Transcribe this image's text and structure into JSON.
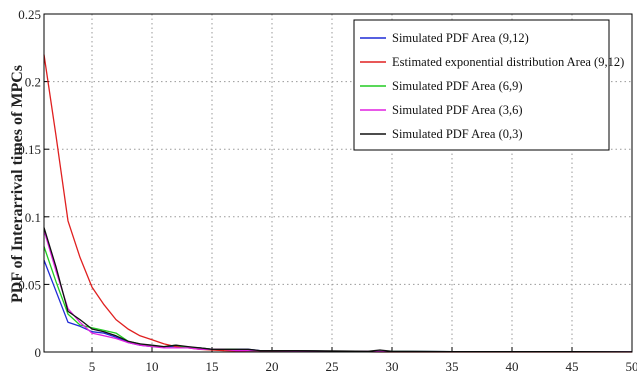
{
  "chart_data": {
    "type": "line",
    "title": "",
    "xlabel": "",
    "ylabel": "PDF of Interarrival times of MPCs",
    "xlim": [
      1,
      50
    ],
    "ylim": [
      0,
      0.25
    ],
    "xticks": [
      5,
      10,
      15,
      20,
      25,
      30,
      35,
      40,
      45,
      50
    ],
    "yticks": [
      0,
      0.05,
      0.1,
      0.15,
      0.2,
      0.25
    ],
    "ytick_labels": [
      "0",
      "0.05",
      "0.1",
      "0.15",
      "0.2",
      "0.25"
    ],
    "grid": true,
    "legend_position": "top-right",
    "series": [
      {
        "name": "Simulated PDF Area (9,12)",
        "color": "#1f2bd6",
        "x": [
          1,
          2,
          3,
          4,
          5,
          6,
          7,
          8,
          9,
          10,
          11,
          12,
          13,
          14,
          15,
          16,
          17,
          18,
          19,
          20,
          22,
          25,
          28,
          30,
          35,
          40,
          45,
          50
        ],
        "y": [
          0.068,
          0.045,
          0.022,
          0.019,
          0.015,
          0.014,
          0.011,
          0.007,
          0.005,
          0.004,
          0.004,
          0.004,
          0.003,
          0.003,
          0.002,
          0.002,
          0.002,
          0.002,
          0.001,
          0.001,
          0.001,
          0.0005,
          0.0005,
          0.0005,
          0.0003,
          0.0002,
          0.0002,
          0.0001
        ]
      },
      {
        "name": "Estimated exponential distribution Area (9,12)",
        "color": "#e02020",
        "x": [
          1,
          2,
          3,
          4,
          5,
          6,
          7,
          8,
          9,
          10,
          11,
          12,
          13,
          14,
          15,
          16,
          17,
          18,
          19,
          20,
          22,
          25,
          28,
          30,
          35,
          40,
          45,
          50
        ],
        "y": [
          0.22,
          0.16,
          0.097,
          0.07,
          0.048,
          0.035,
          0.024,
          0.017,
          0.012,
          0.009,
          0.006,
          0.004,
          0.003,
          0.002,
          0.0015,
          0.001,
          0.0008,
          0.0006,
          0.0004,
          0.0003,
          0.0002,
          0.0001,
          0.0001,
          0.0,
          0.0,
          0.0,
          0.0,
          0.0
        ]
      },
      {
        "name": "Simulated PDF Area (6,9)",
        "color": "#22cc22",
        "x": [
          1,
          2,
          3,
          4,
          5,
          6,
          7,
          8,
          9,
          10,
          11,
          12,
          13,
          14,
          15,
          16,
          17,
          18,
          19,
          20,
          22,
          25,
          28,
          30,
          35,
          40,
          45,
          50
        ],
        "y": [
          0.078,
          0.052,
          0.028,
          0.02,
          0.018,
          0.016,
          0.014,
          0.008,
          0.006,
          0.004,
          0.004,
          0.005,
          0.003,
          0.003,
          0.002,
          0.002,
          0.002,
          0.001,
          0.001,
          0.001,
          0.001,
          0.0005,
          0.0005,
          0.0005,
          0.0003,
          0.0002,
          0.0002,
          0.0001
        ]
      },
      {
        "name": "Simulated PDF Area (3,6)",
        "color": "#e020e0",
        "x": [
          1,
          2,
          3,
          4,
          5,
          6,
          7,
          8,
          9,
          10,
          11,
          12,
          13,
          14,
          15,
          16,
          17,
          18,
          19,
          20,
          22,
          25,
          28,
          30,
          35,
          40,
          45,
          50
        ],
        "y": [
          0.09,
          0.06,
          0.032,
          0.022,
          0.014,
          0.012,
          0.01,
          0.007,
          0.005,
          0.004,
          0.003,
          0.003,
          0.003,
          0.002,
          0.002,
          0.002,
          0.001,
          0.001,
          0.001,
          0.001,
          0.0008,
          0.0005,
          0.0005,
          0.0004,
          0.0003,
          0.0002,
          0.0001,
          0.0001
        ]
      },
      {
        "name": "Simulated PDF Area (0,3)",
        "color": "#111111",
        "x": [
          1,
          2,
          3,
          4,
          5,
          6,
          7,
          8,
          9,
          10,
          11,
          12,
          13,
          14,
          15,
          16,
          17,
          18,
          19,
          20,
          22,
          25,
          28,
          29,
          30,
          35,
          40,
          45,
          50
        ],
        "y": [
          0.092,
          0.063,
          0.03,
          0.024,
          0.017,
          0.015,
          0.012,
          0.008,
          0.006,
          0.005,
          0.004,
          0.005,
          0.004,
          0.003,
          0.002,
          0.002,
          0.002,
          0.002,
          0.001,
          0.001,
          0.001,
          0.0008,
          0.0005,
          0.0015,
          0.0005,
          0.0003,
          0.0002,
          0.0002,
          0.0001
        ]
      }
    ]
  }
}
